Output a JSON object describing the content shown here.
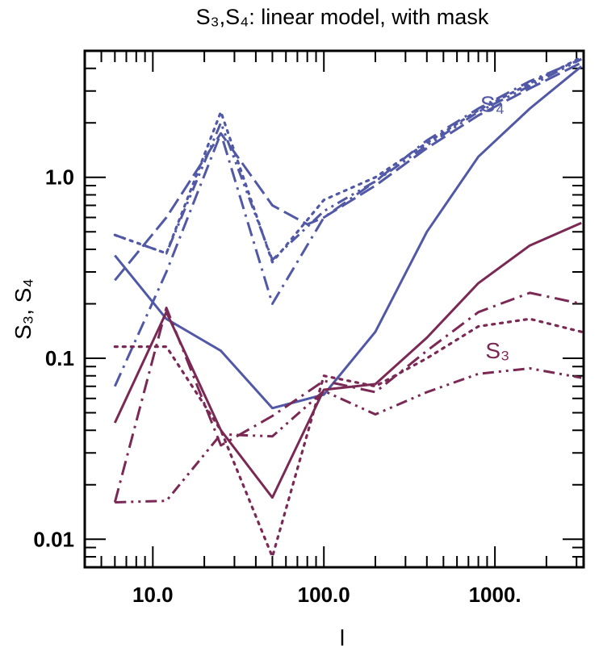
{
  "chart_data": {
    "type": "line",
    "title": "S₃,S₄: linear model, with mask",
    "xlabel": "l",
    "ylabel": "S₃, S₄",
    "xscale": "log",
    "yscale": "log",
    "xlim": [
      4.0,
      3300.0
    ],
    "ylim": [
      0.007,
      5.0
    ],
    "x_ticks": [
      10,
      100,
      1000
    ],
    "x_tick_labels": [
      "10.0",
      "100.0",
      "1000."
    ],
    "y_ticks": [
      0.01,
      0.1,
      1.0
    ],
    "y_tick_labels": [
      "0.01",
      "0.1",
      "1.0"
    ],
    "grid": false,
    "colors": {
      "S4": "#5158a6",
      "S3": "#7a2854"
    },
    "annotations": [
      {
        "text": "S₄",
        "x": 820,
        "y": 2.3,
        "series_group": "S4"
      },
      {
        "text": "S₃",
        "x": 880,
        "y": 0.1,
        "series_group": "S3"
      }
    ],
    "series": [
      {
        "name": "S4 solid",
        "group": "S4",
        "style": "solid",
        "x": [
          6,
          12,
          25,
          50,
          100,
          200,
          400,
          800,
          1600,
          3200
        ],
        "y": [
          0.37,
          0.165,
          0.11,
          0.053,
          0.063,
          0.14,
          0.5,
          1.3,
          2.4,
          4.1
        ]
      },
      {
        "name": "S4 dash-dot",
        "group": "S4",
        "style": "dashdot",
        "x": [
          6,
          12,
          25,
          50,
          100,
          200,
          400,
          800,
          1600,
          3200
        ],
        "y": [
          0.07,
          0.3,
          1.75,
          0.2,
          0.6,
          0.95,
          1.6,
          2.4,
          3.4,
          4.5
        ]
      },
      {
        "name": "S4 long-dash",
        "group": "S4",
        "style": "dashed",
        "x": [
          6,
          12,
          25,
          50,
          80,
          100,
          200,
          400,
          800,
          1600,
          3200
        ],
        "y": [
          0.27,
          0.6,
          1.75,
          0.7,
          0.55,
          0.6,
          0.9,
          1.45,
          2.2,
          3.1,
          4.3
        ]
      },
      {
        "name": "S4 dotted",
        "group": "S4",
        "style": "dotted",
        "x": [
          6,
          12,
          25,
          50,
          100,
          200,
          400,
          800,
          1600,
          3200
        ],
        "y": [
          0.48,
          0.38,
          2.3,
          0.34,
          0.75,
          1.0,
          1.55,
          2.35,
          3.3,
          4.6
        ]
      },
      {
        "name": "S4 dash-dot-dot",
        "group": "S4",
        "style": "dashdotdot",
        "x": [
          6,
          12,
          25,
          50,
          100,
          200,
          400,
          800,
          1600,
          3200
        ],
        "y": [
          0.48,
          0.38,
          2.0,
          0.35,
          0.65,
          0.95,
          1.5,
          2.3,
          3.2,
          4.5
        ]
      },
      {
        "name": "S3 solid",
        "group": "S3",
        "style": "solid",
        "x": [
          6,
          12,
          25,
          50,
          100,
          200,
          400,
          800,
          1600,
          3200
        ],
        "y": [
          0.044,
          0.18,
          0.04,
          0.017,
          0.067,
          0.072,
          0.13,
          0.26,
          0.42,
          0.56
        ]
      },
      {
        "name": "S3 dash-dot",
        "group": "S3",
        "style": "dashdot",
        "x": [
          6,
          12,
          25,
          50,
          100,
          200,
          400,
          800,
          1600,
          3200
        ],
        "y": [
          0.016,
          0.19,
          0.033,
          0.048,
          0.075,
          0.065,
          0.11,
          0.18,
          0.23,
          0.2
        ]
      },
      {
        "name": "S3 dotted",
        "group": "S3",
        "style": "dotted",
        "x": [
          6,
          12,
          25,
          50,
          100,
          200,
          400,
          800,
          1600,
          3200
        ],
        "y": [
          0.116,
          0.116,
          0.04,
          0.008,
          0.08,
          0.07,
          0.1,
          0.15,
          0.165,
          0.14
        ]
      },
      {
        "name": "S3 dash-dot-dot",
        "group": "S3",
        "style": "dashdotdot",
        "x": [
          6,
          12,
          25,
          50,
          100,
          200,
          400,
          800,
          1600,
          3200
        ],
        "y": [
          0.016,
          0.0163,
          0.038,
          0.037,
          0.066,
          0.049,
          0.065,
          0.082,
          0.088,
          0.078
        ]
      }
    ]
  }
}
